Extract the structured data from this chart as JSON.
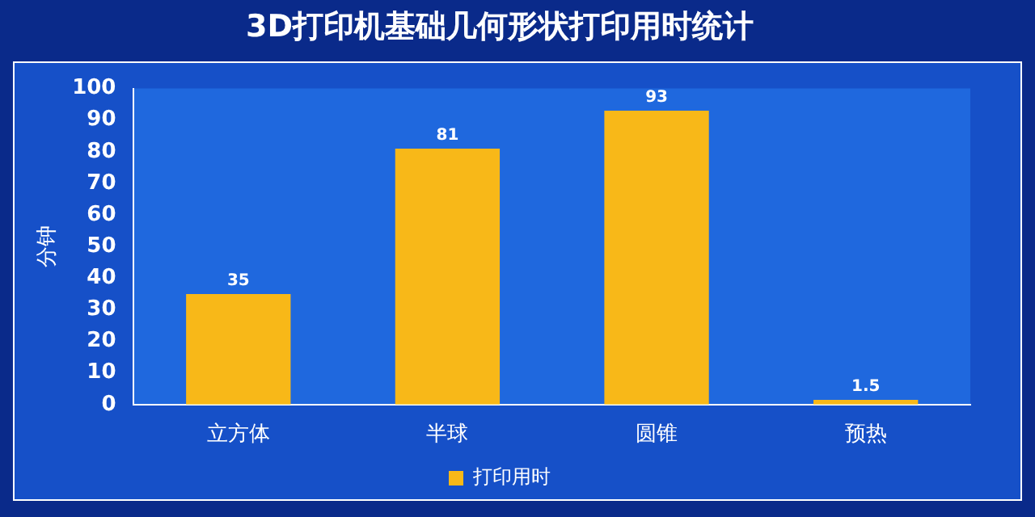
{
  "chart_data": {
    "type": "bar",
    "title": "3D打印机基础几何形状打印用时统计",
    "ylabel": "分钟",
    "categories": [
      "立方体",
      "半球",
      "圆锥",
      "预热"
    ],
    "series": [
      {
        "name": "打印用时",
        "color": "#f8b818",
        "values": [
          35,
          81,
          93,
          1.5
        ]
      }
    ],
    "ylim": [
      0,
      100
    ],
    "yticks": [
      0,
      10,
      20,
      30,
      40,
      50,
      60,
      70,
      80,
      90,
      100
    ],
    "grid": false,
    "legend": "bottom",
    "data_labels": true
  }
}
